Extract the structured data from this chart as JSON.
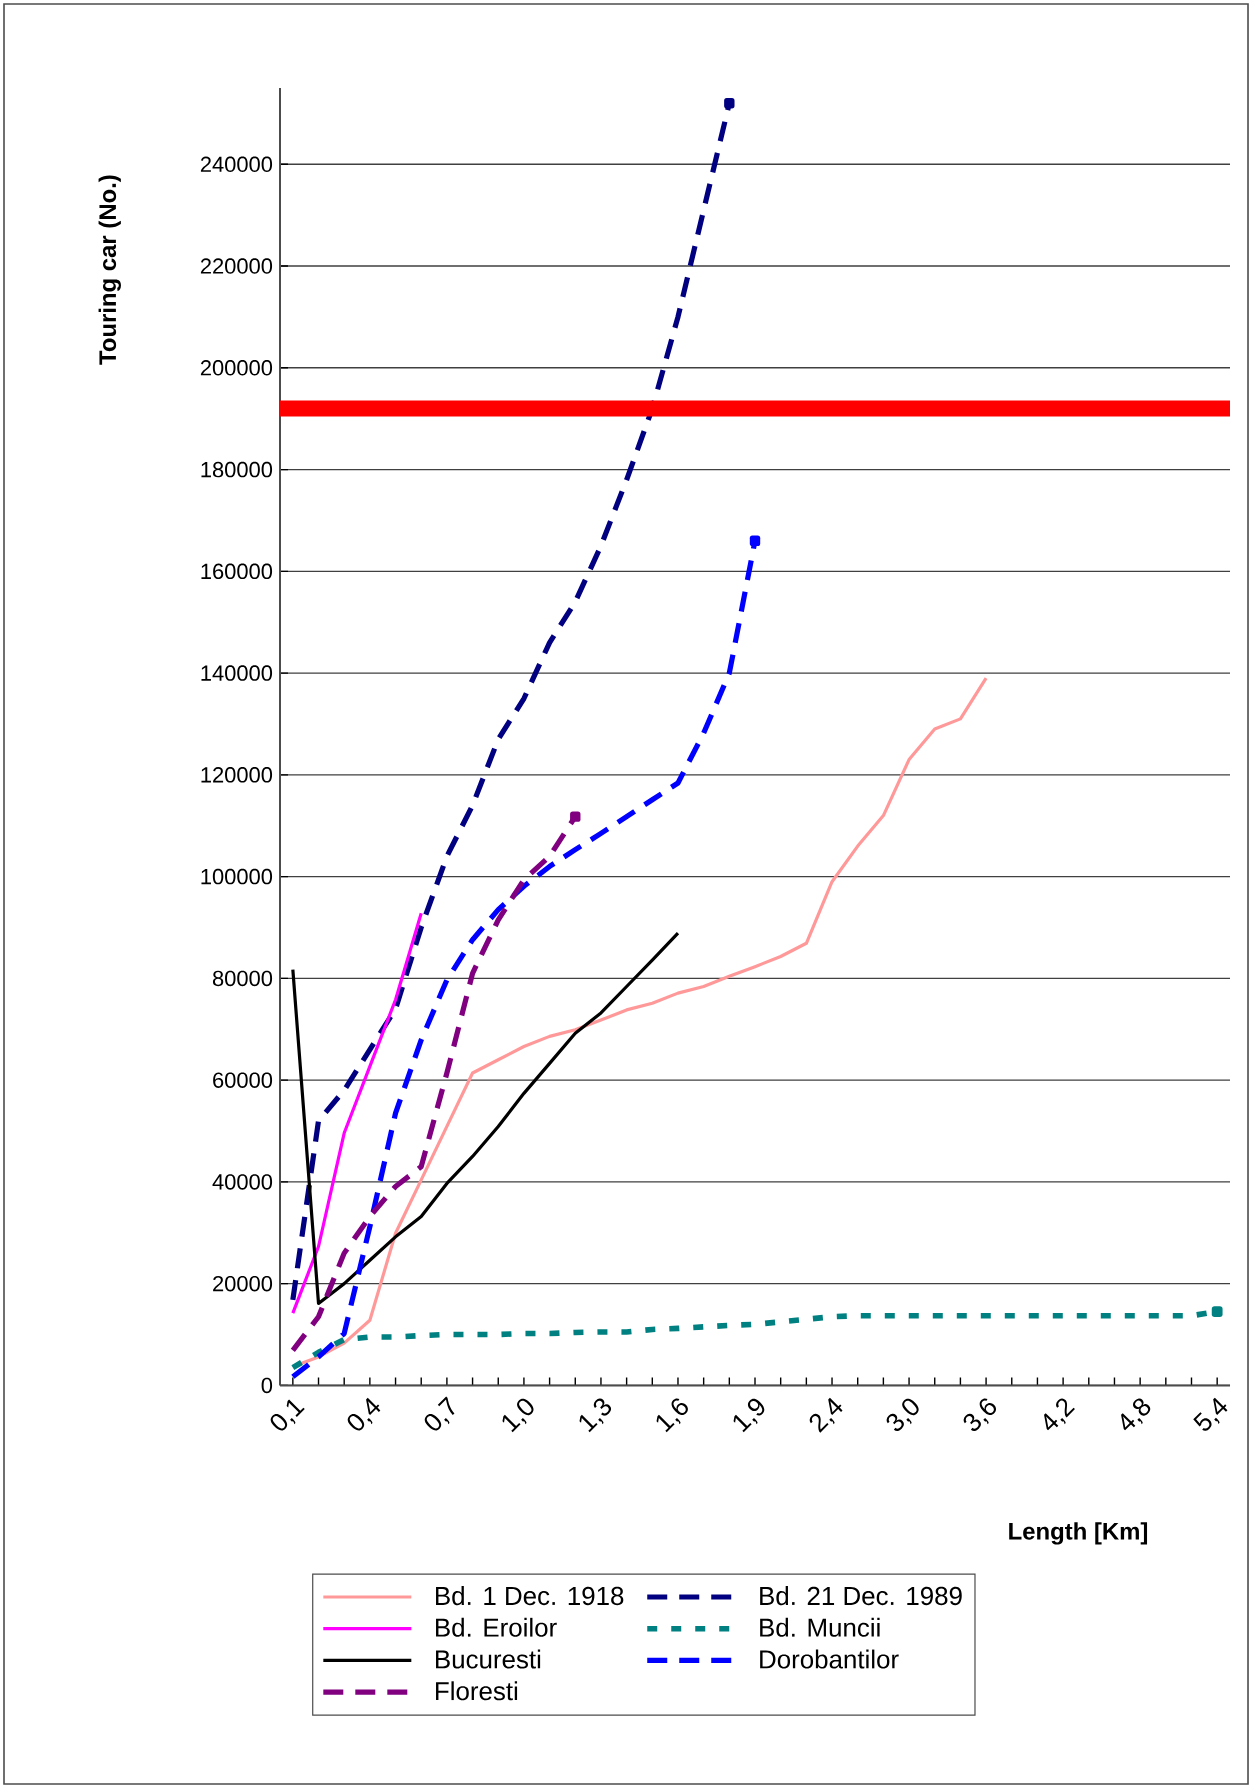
{
  "chart_data": {
    "type": "line",
    "xlabel": "Length [Km]",
    "ylabel": "Touring car  (No.)",
    "categories": [
      "0,1",
      null,
      null,
      "0,4",
      null,
      null,
      "0,7",
      null,
      null,
      "1,0",
      null,
      null,
      "1,3",
      null,
      null,
      "1,6",
      null,
      null,
      "1,9",
      null,
      null,
      "2,4",
      null,
      null,
      "3,0",
      null,
      null,
      "3,6",
      null,
      null,
      "4,2",
      null,
      null,
      "4,8",
      null,
      null,
      "5,4"
    ],
    "ylim": [
      0,
      255000
    ],
    "yticks": [
      0,
      20000,
      40000,
      60000,
      80000,
      100000,
      120000,
      140000,
      160000,
      180000,
      200000,
      220000,
      240000
    ],
    "grid": "y",
    "legend": "bottom",
    "series": [
      {
        "name": "Bd. 1 Dec. 1918",
        "color": "#ff9999",
        "line_style": "solid",
        "values": [
          3700,
          5600,
          8300,
          12800,
          29900,
          40400,
          50900,
          61400,
          64000,
          66600,
          68600,
          69900,
          71800,
          73800,
          75100,
          77100,
          78400,
          80400,
          82300,
          84300,
          86900,
          99000,
          106000,
          112000,
          123000,
          129000,
          131000,
          139000,
          null,
          null,
          null,
          null,
          null,
          null,
          null,
          null,
          null
        ]
      },
      {
        "name": "Bd. 21 Dec. 1989",
        "color": "#000080",
        "line_style": "dashed",
        "values": [
          16800,
          52000,
          58000,
          66000,
          74000,
          90000,
          104000,
          114000,
          127000,
          135000,
          146000,
          154000,
          165000,
          178000,
          192000,
          210000,
          231000,
          252000,
          null,
          null,
          null,
          null,
          null,
          null,
          null,
          null,
          null,
          null,
          null,
          null,
          null,
          null,
          null,
          null,
          null,
          null,
          null
        ]
      },
      {
        "name": "Bd. Eroilor",
        "color": "#ff00ff",
        "line_style": "solid",
        "values": [
          14200,
          27300,
          49600,
          62700,
          75800,
          92800,
          null,
          null,
          null,
          null,
          null,
          null,
          null,
          null,
          null,
          null,
          null,
          null,
          null,
          null,
          null,
          null,
          null,
          null,
          null,
          null,
          null,
          null,
          null,
          null,
          null,
          null,
          null,
          null,
          null,
          null,
          null
        ]
      },
      {
        "name": "Bd. Muncii",
        "color": "#008080",
        "line_style": "dotted",
        "values": [
          3500,
          6500,
          9000,
          9500,
          9500,
          9800,
          10000,
          10000,
          10000,
          10200,
          10200,
          10400,
          10500,
          10500,
          11000,
          11200,
          11500,
          11800,
          12000,
          12500,
          13000,
          13500,
          13700,
          13700,
          13700,
          13700,
          13700,
          13700,
          13700,
          13700,
          13700,
          13700,
          13700,
          13700,
          13700,
          13700,
          14500
        ]
      },
      {
        "name": "Bucuresti",
        "color": "#000000",
        "line_style": "solid",
        "values": [
          81700,
          16100,
          20000,
          24600,
          29200,
          33200,
          39700,
          45000,
          50900,
          57400,
          63300,
          69200,
          73200,
          78400,
          83600,
          88900,
          null,
          null,
          null,
          null,
          null,
          null,
          null,
          null,
          null,
          null,
          null,
          null,
          null,
          null,
          null,
          null,
          null,
          null,
          null,
          null,
          null
        ]
      },
      {
        "name": "Dorobantilor",
        "color": "#0000ff",
        "line_style": "dashed",
        "values": [
          1700,
          5600,
          10200,
          31200,
          53500,
          67900,
          79700,
          87600,
          93500,
          98100,
          102000,
          105300,
          108500,
          111800,
          115100,
          118400,
          128200,
          140000,
          166000,
          null,
          null,
          null,
          null,
          null,
          null,
          null,
          null,
          null,
          null,
          null,
          null,
          null,
          null,
          null,
          null,
          null,
          null
        ]
      },
      {
        "name": "Floresti",
        "color": "#800080",
        "line_style": "dashed",
        "values": [
          6900,
          13500,
          26000,
          33200,
          39100,
          43000,
          61400,
          81000,
          91500,
          99400,
          104000,
          111800,
          null,
          null,
          null,
          null,
          null,
          null,
          null,
          null,
          null,
          null,
          null,
          null,
          null,
          null,
          null,
          null,
          null,
          null,
          null,
          null,
          null,
          null,
          null,
          null,
          null
        ]
      }
    ],
    "ref_lines": [
      {
        "axis": "y",
        "value": 192000,
        "color": "#ff0000"
      }
    ]
  }
}
